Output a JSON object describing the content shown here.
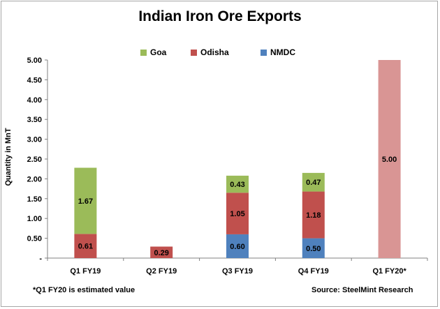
{
  "chart_data": {
    "type": "bar",
    "stacked": true,
    "title": "Indian Iron Ore Exports",
    "ylabel": "Quantity in MnT",
    "xlabel": "",
    "ylim": [
      0,
      5.0
    ],
    "y_ticks": [
      "5.00",
      "4.50",
      "4.00",
      "3.50",
      "3.00",
      "2.50",
      "2.00",
      "1.50",
      "1.00",
      "0.50",
      "-"
    ],
    "y_tick_values": [
      5.0,
      4.5,
      4.0,
      3.5,
      3.0,
      2.5,
      2.0,
      1.5,
      1.0,
      0.5,
      0
    ],
    "categories": [
      "Q1 FY19",
      "Q2 FY19",
      "Q3 FY19",
      "Q4 FY19",
      "Q1 FY20*"
    ],
    "series": [
      {
        "name": "NMDC",
        "color": "#4f81bd",
        "values": [
          0,
          0,
          0.6,
          0.5,
          0
        ],
        "labels": [
          "",
          "",
          "0.60",
          "0.50",
          ""
        ]
      },
      {
        "name": "Odisha",
        "color": "#c0504d",
        "values": [
          0.61,
          0.29,
          1.05,
          1.18,
          0
        ],
        "labels": [
          "0.61",
          "0.29",
          "1.05",
          "1.18",
          ""
        ]
      },
      {
        "name": "Goa",
        "color": "#9bbb59",
        "values": [
          1.67,
          0,
          0.43,
          0.47,
          0
        ],
        "labels": [
          "1.67",
          "",
          "0.43",
          "0.47",
          ""
        ]
      }
    ],
    "estimate": {
      "category": "Q1 FY20*",
      "value": 5.0,
      "label": "5.00",
      "color": "#d99594"
    },
    "legend": {
      "placement": "top",
      "order": [
        "Goa",
        "Odisha",
        "NMDC"
      ]
    },
    "grid": false
  },
  "footnote": "*Q1 FY20 is estimated value",
  "source": "Source: SteelMint Research"
}
